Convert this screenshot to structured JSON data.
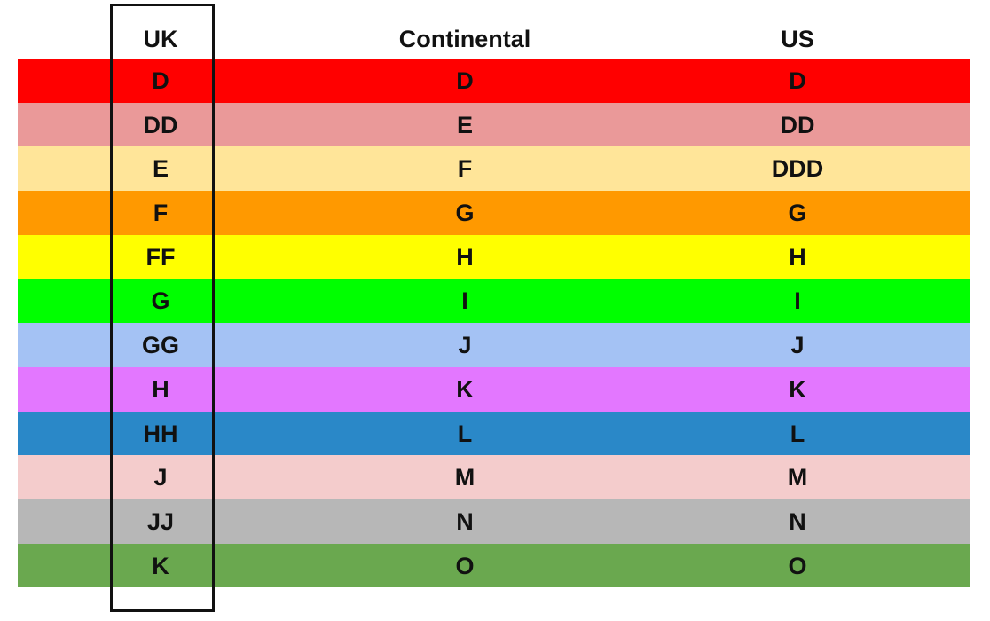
{
  "headers": [
    "UK",
    "Continental",
    "US"
  ],
  "rows": [
    {
      "uk": "D",
      "continental": "D",
      "us": "D",
      "color": "#ff0000"
    },
    {
      "uk": "DD",
      "continental": "E",
      "us": "DD",
      "color": "#ea9999"
    },
    {
      "uk": "E",
      "continental": "F",
      "us": "DDD",
      "color": "#ffe599"
    },
    {
      "uk": "F",
      "continental": "G",
      "us": "G",
      "color": "#ff9900"
    },
    {
      "uk": "FF",
      "continental": "H",
      "us": "H",
      "color": "#ffff00"
    },
    {
      "uk": "G",
      "continental": "I",
      "us": "I",
      "color": "#00ff00"
    },
    {
      "uk": "GG",
      "continental": "J",
      "us": "J",
      "color": "#a4c2f4"
    },
    {
      "uk": "H",
      "continental": "K",
      "us": "K",
      "color": "#e377ff"
    },
    {
      "uk": "HH",
      "continental": "L",
      "us": "L",
      "color": "#2a88c8"
    },
    {
      "uk": "J",
      "continental": "M",
      "us": "M",
      "color": "#f4cccc"
    },
    {
      "uk": "JJ",
      "continental": "N",
      "us": "N",
      "color": "#b7b7b7"
    },
    {
      "uk": "K",
      "continental": "O",
      "us": "O",
      "color": "#6aa84f"
    }
  ]
}
